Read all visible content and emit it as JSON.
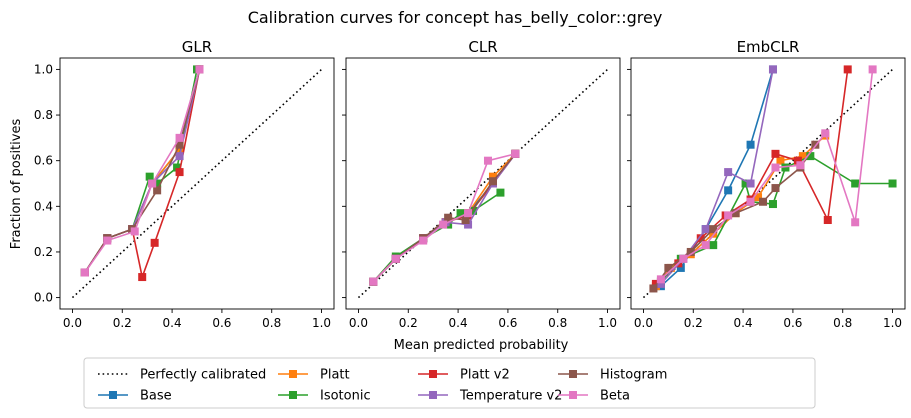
{
  "figure": {
    "title": "Calibration curves for concept has_belly_color::grey",
    "xlabel": "Mean predicted probability",
    "ylabel": "Fraction of positives"
  },
  "colors": {
    "Base": "#1f77b4",
    "Platt": "#ff7f0e",
    "Isotonic": "#2ca02c",
    "Platt v2": "#d62728",
    "Temperature v2": "#9467bd",
    "Histogram": "#8c564b",
    "Beta": "#e377c2",
    "Perfectly calibrated": "#000000"
  },
  "legend": {
    "placement": "bottom-center",
    "entries": [
      "Perfectly calibrated",
      "Base",
      "Platt",
      "Isotonic",
      "Platt v2",
      "Temperature v2",
      "Histogram",
      "Beta"
    ]
  },
  "chart_data": [
    {
      "type": "line",
      "title": "GLR",
      "xlim": [
        -0.05,
        1.05
      ],
      "ylim": [
        -0.05,
        1.05
      ],
      "xticks": [
        "0.0",
        "0.2",
        "0.4",
        "0.6",
        "0.8",
        "1.0"
      ],
      "yticks": [
        "0.0",
        "0.2",
        "0.4",
        "0.6",
        "0.8",
        "1.0"
      ],
      "grid": false,
      "series": [
        {
          "name": "Base",
          "points": [
            [
              0.05,
              0.11
            ],
            [
              0.14,
              0.26
            ],
            [
              0.24,
              0.3
            ],
            [
              0.32,
              0.5
            ],
            [
              0.43,
              0.65
            ],
            [
              0.51,
              1.0
            ]
          ]
        },
        {
          "name": "Platt",
          "points": [
            [
              0.05,
              0.11
            ],
            [
              0.14,
              0.26
            ],
            [
              0.24,
              0.3
            ],
            [
              0.32,
              0.5
            ],
            [
              0.43,
              0.65
            ],
            [
              0.51,
              1.0
            ]
          ]
        },
        {
          "name": "Isotonic",
          "points": [
            [
              0.05,
              0.11
            ],
            [
              0.14,
              0.26
            ],
            [
              0.24,
              0.3
            ],
            [
              0.31,
              0.53
            ],
            [
              0.34,
              0.5
            ],
            [
              0.42,
              0.57
            ],
            [
              0.5,
              1.0
            ]
          ]
        },
        {
          "name": "Platt v2",
          "points": [
            [
              0.05,
              0.11
            ],
            [
              0.14,
              0.26
            ],
            [
              0.24,
              0.3
            ],
            [
              0.28,
              0.09
            ],
            [
              0.33,
              0.24
            ],
            [
              0.43,
              0.55
            ],
            [
              0.51,
              1.0
            ]
          ]
        },
        {
          "name": "Temperature v2",
          "points": [
            [
              0.05,
              0.11
            ],
            [
              0.14,
              0.26
            ],
            [
              0.24,
              0.3
            ],
            [
              0.32,
              0.5
            ],
            [
              0.43,
              0.62
            ],
            [
              0.51,
              1.0
            ]
          ]
        },
        {
          "name": "Histogram",
          "points": [
            [
              0.05,
              0.11
            ],
            [
              0.14,
              0.26
            ],
            [
              0.24,
              0.3
            ],
            [
              0.34,
              0.47
            ],
            [
              0.43,
              0.67
            ],
            [
              0.51,
              1.0
            ]
          ]
        },
        {
          "name": "Beta",
          "points": [
            [
              0.05,
              0.11
            ],
            [
              0.14,
              0.25
            ],
            [
              0.25,
              0.29
            ],
            [
              0.32,
              0.5
            ],
            [
              0.43,
              0.7
            ],
            [
              0.51,
              1.0
            ]
          ]
        }
      ]
    },
    {
      "type": "line",
      "title": "CLR",
      "xlim": [
        -0.05,
        1.05
      ],
      "ylim": [
        -0.05,
        1.05
      ],
      "xticks": [
        "0.0",
        "0.2",
        "0.4",
        "0.6",
        "0.8",
        "1.0"
      ],
      "yticks": [],
      "grid": false,
      "series": [
        {
          "name": "Base",
          "points": [
            [
              0.06,
              0.07
            ],
            [
              0.15,
              0.17
            ],
            [
              0.26,
              0.26
            ],
            [
              0.35,
              0.33
            ],
            [
              0.44,
              0.37
            ],
            [
              0.54,
              0.5
            ],
            [
              0.63,
              0.63
            ]
          ]
        },
        {
          "name": "Platt",
          "points": [
            [
              0.06,
              0.07
            ],
            [
              0.15,
              0.17
            ],
            [
              0.26,
              0.26
            ],
            [
              0.35,
              0.33
            ],
            [
              0.44,
              0.37
            ],
            [
              0.54,
              0.53
            ],
            [
              0.63,
              0.63
            ]
          ]
        },
        {
          "name": "Isotonic",
          "points": [
            [
              0.06,
              0.07
            ],
            [
              0.15,
              0.18
            ],
            [
              0.26,
              0.26
            ],
            [
              0.36,
              0.32
            ],
            [
              0.41,
              0.37
            ],
            [
              0.46,
              0.38
            ],
            [
              0.57,
              0.46
            ]
          ]
        },
        {
          "name": "Platt v2",
          "points": [
            [
              0.06,
              0.07
            ],
            [
              0.15,
              0.17
            ],
            [
              0.26,
              0.26
            ],
            [
              0.35,
              0.33
            ],
            [
              0.44,
              0.36
            ],
            [
              0.54,
              0.5
            ],
            [
              0.63,
              0.63
            ]
          ]
        },
        {
          "name": "Temperature v2",
          "points": [
            [
              0.06,
              0.07
            ],
            [
              0.15,
              0.17
            ],
            [
              0.26,
              0.26
            ],
            [
              0.35,
              0.33
            ],
            [
              0.44,
              0.32
            ],
            [
              0.54,
              0.5
            ],
            [
              0.63,
              0.63
            ]
          ]
        },
        {
          "name": "Histogram",
          "points": [
            [
              0.06,
              0.07
            ],
            [
              0.15,
              0.17
            ],
            [
              0.26,
              0.26
            ],
            [
              0.36,
              0.35
            ],
            [
              0.43,
              0.34
            ],
            [
              0.54,
              0.51
            ],
            [
              0.63,
              0.63
            ]
          ]
        },
        {
          "name": "Beta",
          "points": [
            [
              0.06,
              0.07
            ],
            [
              0.15,
              0.17
            ],
            [
              0.26,
              0.25
            ],
            [
              0.34,
              0.32
            ],
            [
              0.44,
              0.37
            ],
            [
              0.52,
              0.6
            ],
            [
              0.63,
              0.63
            ]
          ]
        }
      ]
    },
    {
      "type": "line",
      "title": "EmbCLR",
      "xlim": [
        -0.05,
        1.05
      ],
      "ylim": [
        -0.05,
        1.05
      ],
      "xticks": [
        "0.0",
        "0.2",
        "0.4",
        "0.6",
        "0.8",
        "1.0"
      ],
      "yticks": [],
      "grid": false,
      "series": [
        {
          "name": "Base",
          "points": [
            [
              0.07,
              0.05
            ],
            [
              0.15,
              0.13
            ],
            [
              0.25,
              0.3
            ],
            [
              0.34,
              0.47
            ],
            [
              0.43,
              0.67
            ],
            [
              0.52,
              1.0
            ]
          ]
        },
        {
          "name": "Platt",
          "points": [
            [
              0.05,
              0.05
            ],
            [
              0.11,
              0.13
            ],
            [
              0.19,
              0.19
            ],
            [
              0.28,
              0.28
            ],
            [
              0.37,
              0.37
            ],
            [
              0.46,
              0.44
            ],
            [
              0.55,
              0.6
            ],
            [
              0.64,
              0.62
            ],
            [
              0.73,
              0.71
            ]
          ]
        },
        {
          "name": "Isotonic",
          "points": [
            [
              0.07,
              0.07
            ],
            [
              0.15,
              0.17
            ],
            [
              0.28,
              0.23
            ],
            [
              0.41,
              0.5
            ],
            [
              0.43,
              0.42
            ],
            [
              0.52,
              0.41
            ],
            [
              0.57,
              0.57
            ],
            [
              0.67,
              0.62
            ],
            [
              0.85,
              0.5
            ],
            [
              1.0,
              0.5
            ]
          ]
        },
        {
          "name": "Platt v2",
          "points": [
            [
              0.05,
              0.06
            ],
            [
              0.14,
              0.15
            ],
            [
              0.23,
              0.26
            ],
            [
              0.33,
              0.36
            ],
            [
              0.43,
              0.43
            ],
            [
              0.53,
              0.63
            ],
            [
              0.62,
              0.6
            ],
            [
              0.74,
              0.34
            ],
            [
              0.82,
              1.0
            ]
          ]
        },
        {
          "name": "Temperature v2",
          "points": [
            [
              0.07,
              0.06
            ],
            [
              0.16,
              0.17
            ],
            [
              0.25,
              0.3
            ],
            [
              0.34,
              0.55
            ],
            [
              0.43,
              0.5
            ],
            [
              0.52,
              1.0
            ]
          ]
        },
        {
          "name": "Histogram",
          "points": [
            [
              0.04,
              0.04
            ],
            [
              0.1,
              0.13
            ],
            [
              0.19,
              0.2
            ],
            [
              0.28,
              0.3
            ],
            [
              0.37,
              0.37
            ],
            [
              0.48,
              0.42
            ],
            [
              0.53,
              0.48
            ],
            [
              0.63,
              0.57
            ],
            [
              0.69,
              0.67
            ]
          ]
        },
        {
          "name": "Beta",
          "points": [
            [
              0.07,
              0.08
            ],
            [
              0.16,
              0.17
            ],
            [
              0.25,
              0.23
            ],
            [
              0.34,
              0.36
            ],
            [
              0.43,
              0.42
            ],
            [
              0.53,
              0.57
            ],
            [
              0.63,
              0.58
            ],
            [
              0.73,
              0.72
            ],
            [
              0.85,
              0.33
            ],
            [
              0.92,
              1.0
            ]
          ]
        }
      ]
    }
  ]
}
